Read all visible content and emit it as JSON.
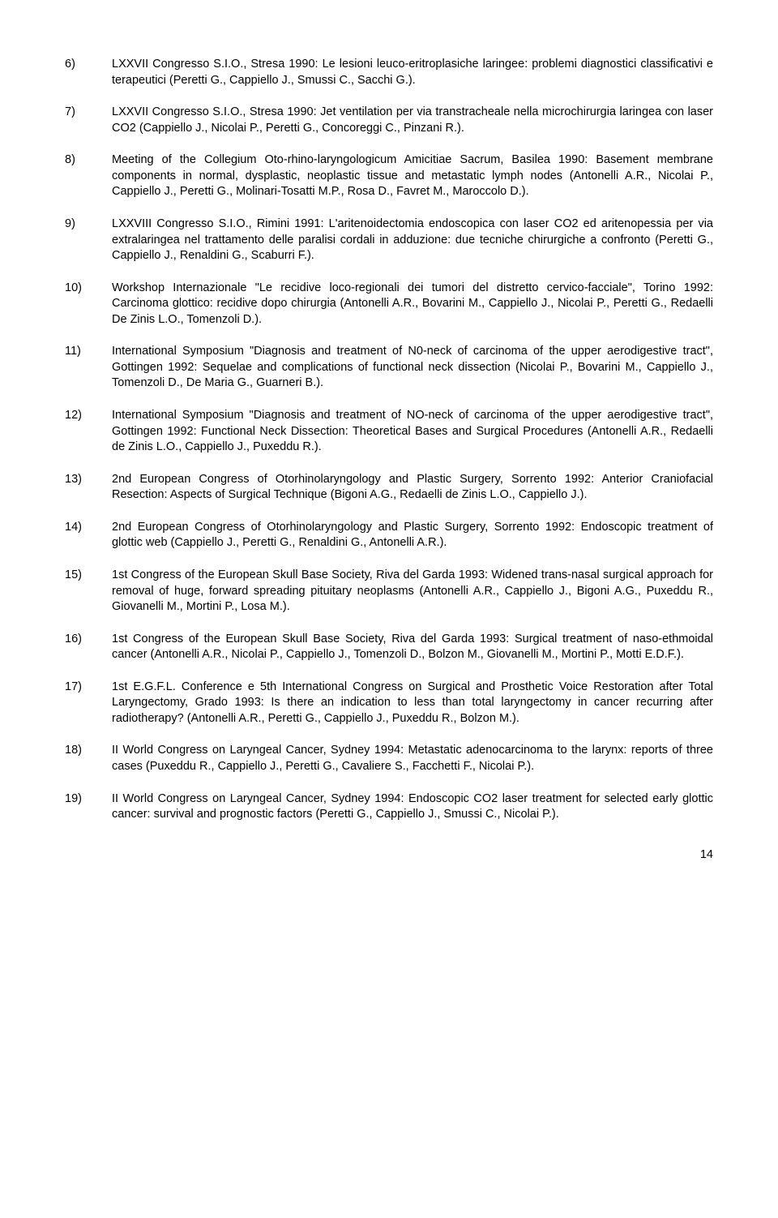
{
  "entries": [
    {
      "num": "6)",
      "text": "LXXVII Congresso S.I.O., Stresa 1990: Le lesioni leuco-eritroplasiche laringee: problemi diagnostici classificativi e terapeutici (Peretti G., Cappiello J., Smussi C., Sacchi G.)."
    },
    {
      "num": "7)",
      "text": "LXXVII Congresso S.I.O., Stresa 1990: Jet ventilation per via transtracheale nella microchirurgia laringea con laser CO2 (Cappiello J., Nicolai P., Peretti G., Concoreggi C., Pinzani R.)."
    },
    {
      "num": "8)",
      "text": "Meeting of the Collegium Oto-rhino-laryngologicum Amicitiae Sacrum, Basilea 1990: Basement membrane components in normal, dysplastic, neoplastic tissue and metastatic lymph nodes (Antonelli A.R., Nicolai P., Cappiello J., Peretti G., Molinari-Tosatti M.P., Rosa D., Favret M., Maroccolo D.)."
    },
    {
      "num": "9)",
      "text": "LXXVIII Congresso S.I.O., Rimini 1991: L'aritenoidectomia endoscopica con laser CO2 ed aritenopessia per via extralaringea nel trattamento delle paralisi cordali in adduzione: due tecniche chirurgiche a confronto (Peretti G., Cappiello J., Renaldini G., Scaburri F.)."
    },
    {
      "num": "10)",
      "text": "Workshop Internazionale \"Le recidive loco-regionali dei tumori del distretto cervico-facciale\", Torino 1992: Carcinoma glottico: recidive dopo chirurgia (Antonelli A.R., Bovarini M., Cappiello J., Nicolai P., Peretti G., Redaelli De Zinis L.O., Tomenzoli D.)."
    },
    {
      "num": "11)",
      "text": "International Symposium \"Diagnosis and treatment of N0-neck of carcinoma of the upper aerodigestive tract\", Gottingen 1992: Sequelae and complications of functional neck dissection (Nicolai P., Bovarini M., Cappiello J., Tomenzoli D., De Maria G., Guarneri B.)."
    },
    {
      "num": "12)",
      "text": "International Symposium \"Diagnosis and treatment of NO-neck of carcinoma of the upper aerodigestive tract\", Gottingen 1992: Functional Neck Dissection: Theoretical Bases and Surgical Procedures (Antonelli A.R., Redaelli de Zinis L.O., Cappiello J., Puxeddu R.)."
    },
    {
      "num": "13)",
      "text": "2nd European Congress of Otorhinolaryngology and Plastic Surgery, Sorrento 1992: Anterior Craniofacial Resection: Aspects of Surgical Technique (Bigoni A.G., Redaelli de Zinis L.O., Cappiello J.)."
    },
    {
      "num": "14)",
      "text": "2nd European Congress of Otorhinolaryngology and Plastic Surgery, Sorrento 1992: Endoscopic treatment of glottic web (Cappiello J., Peretti G., Renaldini G., Antonelli A.R.)."
    },
    {
      "num": "15)",
      "text": "1st Congress of the European Skull Base Society, Riva del Garda 1993: Widened trans-nasal surgical approach for removal of huge, forward spreading pituitary neoplasms (Antonelli A.R., Cappiello J., Bigoni A.G., Puxeddu R., Giovanelli M., Mortini P., Losa M.)."
    },
    {
      "num": "16)",
      "text": "1st Congress of the European Skull Base Society, Riva del Garda 1993: Surgical treatment of naso-ethmoidal cancer (Antonelli A.R., Nicolai P., Cappiello J., Tomenzoli D., Bolzon M., Giovanelli M., Mortini P., Motti E.D.F.)."
    },
    {
      "num": "17)",
      "text": "1st E.G.F.L. Conference e 5th International Congress on Surgical and Prosthetic Voice Restoration after Total Laryngectomy, Grado 1993: Is there an indication to less than total laryngectomy in cancer recurring after radiotherapy? (Antonelli A.R., Peretti G., Cappiello J., Puxeddu R., Bolzon M.)."
    },
    {
      "num": "18)",
      "text": "II World Congress on Laryngeal Cancer, Sydney 1994: Metastatic adenocarcinoma to the larynx: reports of three cases (Puxeddu R., Cappiello J., Peretti G., Cavaliere S., Facchetti F., Nicolai P.)."
    },
    {
      "num": "19)",
      "text": "II World Congress on Laryngeal Cancer, Sydney 1994: Endoscopic CO2 laser treatment for selected early glottic cancer: survival and prognostic factors (Peretti G., Cappiello J., Smussi C., Nicolai P.)."
    }
  ],
  "page_number": "14"
}
